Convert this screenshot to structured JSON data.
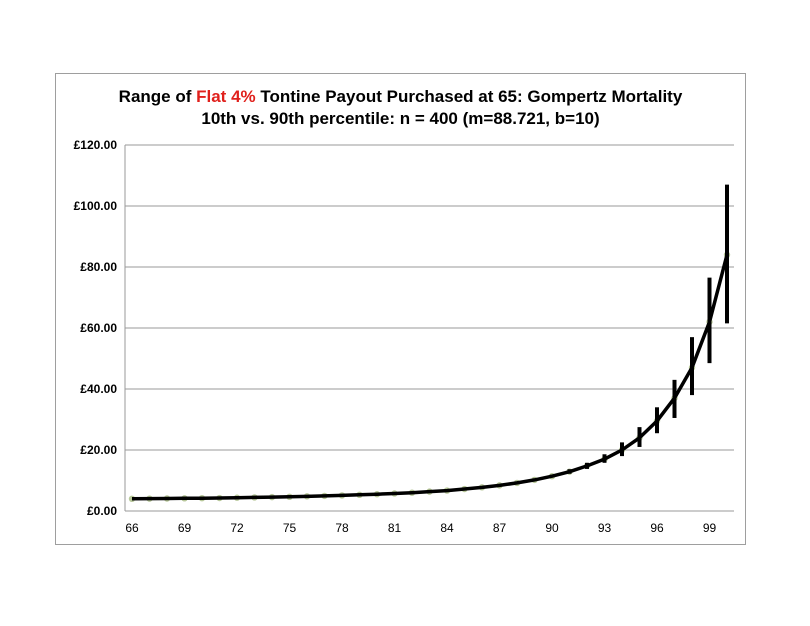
{
  "chart_data": {
    "type": "line",
    "title_parts": [
      "Range of ",
      "Flat 4%",
      " Tontine Payout Purchased at 65: Gompertz Mortality"
    ],
    "subtitle": "10th vs. 90th percentile: n = 400 (m=88.721, b=10)",
    "title_highlight_color": "#e0201c",
    "xlabel": "",
    "ylabel": "",
    "xlim": [
      65.6,
      100.4
    ],
    "ylim": [
      0,
      120
    ],
    "y_ticks": [
      0,
      20,
      40,
      60,
      80,
      100,
      120
    ],
    "y_tick_labels": [
      "£0.00",
      "£20.00",
      "£40.00",
      "£60.00",
      "£80.00",
      "£100.00",
      "£120.00"
    ],
    "x_ticks": [
      66,
      69,
      72,
      75,
      78,
      81,
      84,
      87,
      90,
      93,
      96,
      99
    ],
    "x_tick_labels": [
      "66",
      "69",
      "72",
      "75",
      "78",
      "81",
      "84",
      "87",
      "90",
      "93",
      "96",
      "99"
    ],
    "grid": true,
    "x": [
      66,
      67,
      68,
      69,
      70,
      71,
      72,
      73,
      74,
      75,
      76,
      77,
      78,
      79,
      80,
      81,
      82,
      83,
      84,
      85,
      86,
      87,
      88,
      89,
      90,
      91,
      92,
      93,
      94,
      95,
      96,
      97,
      98,
      99,
      100
    ],
    "series": [
      {
        "values": [
          4.0,
          4.05,
          4.1,
          4.15,
          4.2,
          4.25,
          4.35,
          4.45,
          4.55,
          4.65,
          4.8,
          4.95,
          5.1,
          5.3,
          5.5,
          5.75,
          6.0,
          6.35,
          6.7,
          7.2,
          7.75,
          8.4,
          9.2,
          10.2,
          11.4,
          12.9,
          14.8,
          17.0,
          20.0,
          24.0,
          29.5,
          37.0,
          47.0,
          62.0,
          84.0
        ],
        "p10": [
          4.0,
          4.05,
          4.1,
          4.15,
          4.2,
          4.25,
          4.35,
          4.45,
          4.55,
          4.65,
          4.8,
          4.95,
          5.1,
          5.3,
          5.5,
          5.75,
          6.0,
          6.35,
          6.7,
          7.2,
          7.75,
          8.3,
          9.0,
          9.9,
          11.0,
          12.2,
          13.8,
          15.8,
          18.0,
          21.0,
          25.5,
          30.5,
          38.0,
          48.5,
          61.5
        ],
        "p90": [
          4.0,
          4.05,
          4.1,
          4.15,
          4.2,
          4.25,
          4.35,
          4.45,
          4.55,
          4.65,
          4.8,
          4.95,
          5.1,
          5.3,
          5.5,
          5.75,
          6.0,
          6.35,
          6.7,
          7.2,
          7.75,
          8.5,
          9.4,
          10.6,
          11.9,
          13.7,
          15.8,
          18.6,
          22.5,
          27.5,
          34.0,
          43.0,
          57.0,
          76.5,
          107.0
        ],
        "line_color": "#000000",
        "marker_color": "#b8c89a"
      }
    ]
  }
}
